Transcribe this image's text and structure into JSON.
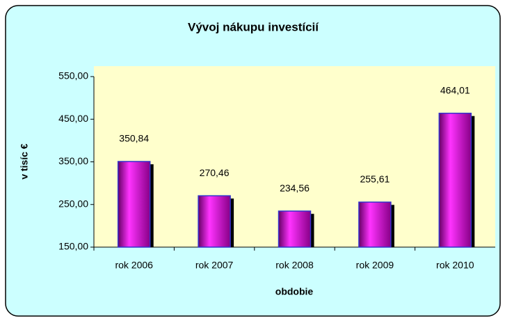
{
  "chart_data": {
    "type": "bar",
    "title": "Vývoj nákupu investícií",
    "xlabel": "obdobie",
    "ylabel": "v tisíc €",
    "categories": [
      "rok 2006",
      "rok 2007",
      "rok 2008",
      "rok 2009",
      "rok 2010"
    ],
    "values": [
      350.84,
      270.46,
      234.56,
      255.61,
      464.01
    ],
    "value_labels": [
      "350,84",
      "270,46",
      "234,56",
      "255,61",
      "464,01"
    ],
    "color": "#cc00cc",
    "ylim": [
      150,
      550
    ],
    "yticks": [
      {
        "value": 150,
        "label": "150,00"
      },
      {
        "value": 250,
        "label": "250,00"
      },
      {
        "value": 350,
        "label": "350,00"
      },
      {
        "value": 450,
        "label": "450,00"
      },
      {
        "value": 550,
        "label": "550,00"
      }
    ],
    "grid": false
  }
}
